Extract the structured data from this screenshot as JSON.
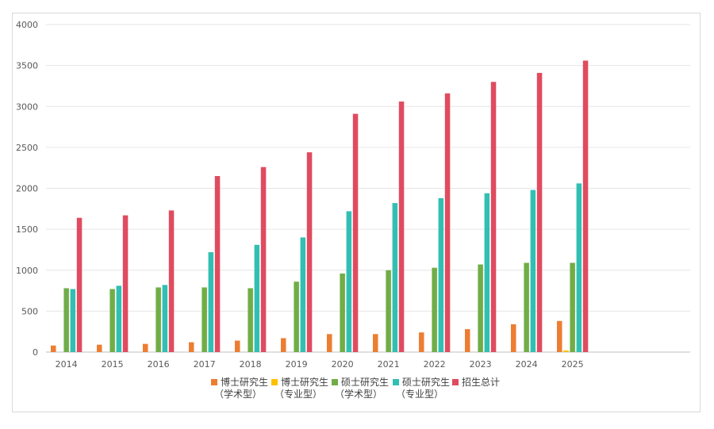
{
  "chart_data": {
    "type": "bar",
    "title": "",
    "xlabel": "",
    "ylabel": "",
    "ylim": [
      0,
      4000
    ],
    "yticks": [
      0,
      500,
      1000,
      1500,
      2000,
      2500,
      3000,
      3500,
      4000
    ],
    "grid": true,
    "legend_position": "bottom",
    "categories": [
      "2014",
      "2015",
      "2016",
      "2017",
      "2018",
      "2019",
      "2020",
      "2021",
      "2022",
      "2023",
      "2024",
      "2025"
    ],
    "series": [
      {
        "name": "博士研究生（学术型）",
        "legend_lines": [
          "博士研究生",
          "（学术型）"
        ],
        "color": "#ed7d31",
        "values": [
          80,
          90,
          100,
          120,
          140,
          170,
          220,
          220,
          240,
          280,
          340,
          380
        ]
      },
      {
        "name": "博士研究生（专业型）",
        "legend_lines": [
          "博士研究生",
          "（专业型）"
        ],
        "color": "#ffc000",
        "values": [
          0,
          0,
          0,
          0,
          0,
          0,
          0,
          0,
          0,
          0,
          0,
          20
        ]
      },
      {
        "name": "硕士研究生（学术型）",
        "legend_lines": [
          "硕士研究生",
          "（学术型）"
        ],
        "color": "#70ad47",
        "values": [
          780,
          770,
          790,
          790,
          780,
          860,
          960,
          1000,
          1030,
          1070,
          1090,
          1090
        ]
      },
      {
        "name": "硕士研究生（专业型）",
        "legend_lines": [
          "硕士研究生",
          "（专业型）"
        ],
        "color": "#31bfb3",
        "values": [
          770,
          810,
          820,
          1220,
          1310,
          1400,
          1720,
          1820,
          1880,
          1940,
          1980,
          2060
        ]
      },
      {
        "name": "招生总计",
        "legend_lines": [
          "招生总计"
        ],
        "color": "#e04b5f",
        "values": [
          1640,
          1670,
          1730,
          2150,
          2260,
          2440,
          2910,
          3060,
          3160,
          3300,
          3410,
          3560
        ]
      }
    ]
  }
}
